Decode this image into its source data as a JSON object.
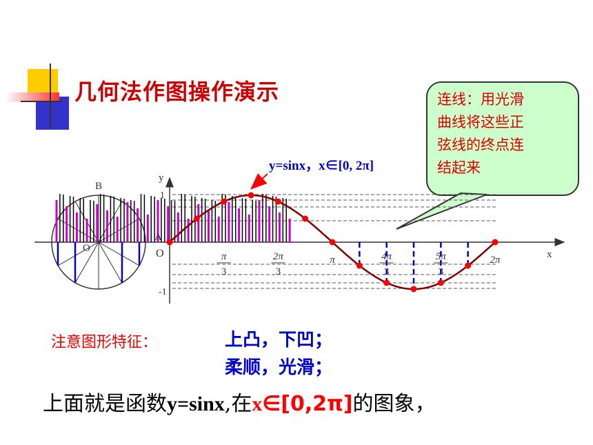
{
  "title": "几何法作图操作演示",
  "callout": {
    "lines": [
      "连线：用光滑",
      "曲线将这些正",
      "弦线的终点连",
      "结起来"
    ]
  },
  "graph": {
    "function_label": "y=sinx，x∈[0, 2π]",
    "y_axis_label": "y",
    "x_axis_label": "x",
    "y_tick_1": "1",
    "y_tick_neg1": "-1",
    "origin_label": "O",
    "circle_center_label": "O",
    "point_A": "A",
    "point_B": "B",
    "x_ticks": [
      {
        "num": "π",
        "den": "3"
      },
      {
        "num": "2π",
        "den": "3"
      },
      {
        "num": "π",
        "den": ""
      },
      {
        "num": "4π",
        "den": "3"
      },
      {
        "num": "5π",
        "den": "3"
      },
      {
        "num": "2π",
        "den": ""
      }
    ],
    "colors": {
      "curve": "#800000",
      "points": "#ff0000",
      "vertical_lines": "#0000cc",
      "trace_lines_dark": "#000000",
      "trace_lines_light": "#cc00cc"
    }
  },
  "notes": {
    "label": "注意图形特征：",
    "line1": "上凸，下凹；",
    "line2": "柔顺，光滑；"
  },
  "summary": {
    "prefix": "上面就是函数",
    "func": "y=sinx",
    "middle": ",在",
    "x_var": "x",
    "in_symbol": "∈",
    "interval": "[0,2π]",
    "suffix": "的图象，"
  }
}
